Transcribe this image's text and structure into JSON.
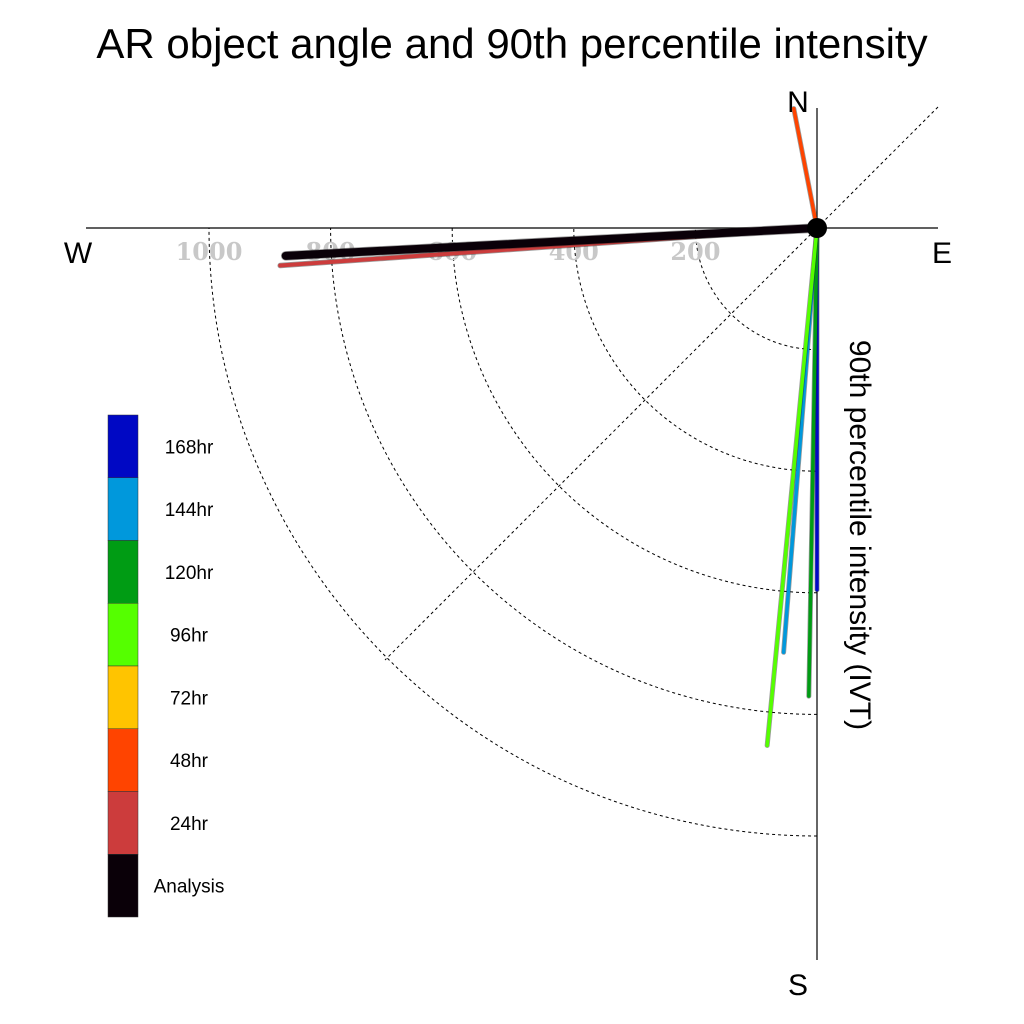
{
  "chart_data": {
    "type": "polar-vector",
    "title": "AR object angle and 90th percentile intensity",
    "radial_label": "90th percentile intensity (IVT)",
    "compass": {
      "north": "N",
      "south": "S",
      "west": "W",
      "east": "E"
    },
    "radial_ticks": [
      200,
      400,
      600,
      800,
      1000
    ],
    "radial_tick_labels": [
      "200",
      "400",
      "600",
      "800",
      "1000"
    ],
    "rmax": 1000,
    "angle_range_deg": [
      0,
      270
    ],
    "grid": true,
    "legend_position": "left",
    "series": [
      {
        "name": "Analysis",
        "color": "#0a0008",
        "angle_deg": 267.0,
        "value": 875
      },
      {
        "name": "24hr",
        "color": "#cc3c3c",
        "angle_deg": 266.0,
        "value": 885
      },
      {
        "name": "48hr",
        "color": "#ff4400",
        "angle_deg": 349.0,
        "value": 200
      },
      {
        "name": "72hr",
        "color": "#ffc400",
        "angle_deg": 180.0,
        "value": 0
      },
      {
        "name": "96hr",
        "color": "#55ff00",
        "angle_deg": 185.5,
        "value": 855
      },
      {
        "name": "120hr",
        "color": "#009c14",
        "angle_deg": 181.0,
        "value": 770
      },
      {
        "name": "144hr",
        "color": "#0098dc",
        "angle_deg": 184.5,
        "value": 700
      },
      {
        "name": "168hr",
        "color": "#0008c4",
        "angle_deg": 180.0,
        "value": 595
      }
    ]
  }
}
